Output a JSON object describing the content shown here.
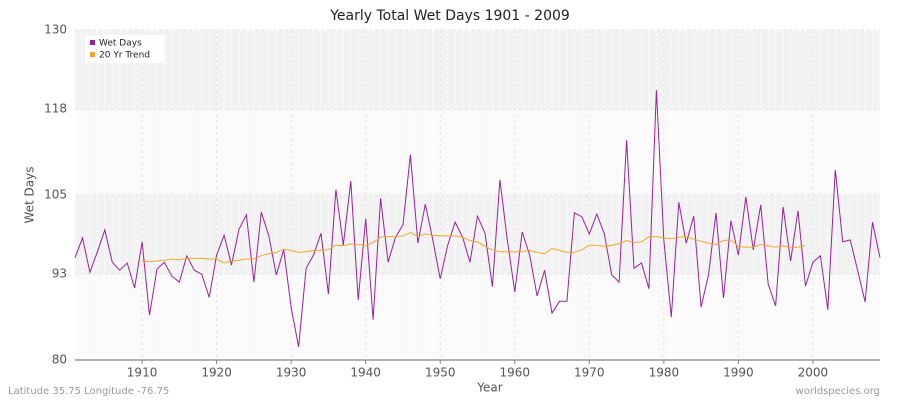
{
  "chart_data": {
    "type": "line",
    "title": "Yearly Total Wet Days 1901 - 2009",
    "x_label": "Year",
    "y_label": "Wet Days",
    "footer_left": "Latitude 35.75 Longitude -76.75",
    "footer_right": "worldspecies.org",
    "x": [
      1901,
      1902,
      1903,
      1904,
      1905,
      1906,
      1907,
      1908,
      1909,
      1910,
      1911,
      1912,
      1913,
      1914,
      1915,
      1916,
      1917,
      1918,
      1919,
      1920,
      1921,
      1922,
      1923,
      1924,
      1925,
      1926,
      1927,
      1928,
      1929,
      1930,
      1931,
      1932,
      1933,
      1934,
      1935,
      1936,
      1937,
      1938,
      1939,
      1940,
      1941,
      1942,
      1943,
      1944,
      1945,
      1946,
      1947,
      1948,
      1949,
      1950,
      1951,
      1952,
      1953,
      1954,
      1955,
      1956,
      1957,
      1958,
      1959,
      1960,
      1961,
      1962,
      1963,
      1964,
      1965,
      1966,
      1967,
      1968,
      1969,
      1970,
      1971,
      1972,
      1973,
      1974,
      1975,
      1976,
      1977,
      1978,
      1979,
      1980,
      1981,
      1982,
      1983,
      1984,
      1985,
      1986,
      1987,
      1988,
      1989,
      1990,
      1991,
      1992,
      1993,
      1994,
      1995,
      1996,
      1997,
      1998,
      1999,
      2000,
      2001,
      2002,
      2003,
      2004,
      2005,
      2006,
      2007,
      2008,
      2009
    ],
    "series": [
      {
        "name": "Wet Days",
        "color": "#9b1fa0",
        "values": [
          95.5,
          98.5,
          93.3,
          96.4,
          99.7,
          94.8,
          93.6,
          94.7,
          90.9,
          97.9,
          86.8,
          93.8,
          94.8,
          92.7,
          91.8,
          95.8,
          93.6,
          93.0,
          89.5,
          95.9,
          98.9,
          94.4,
          99.8,
          102.0,
          91.8,
          102.4,
          98.8,
          92.9,
          96.7,
          87.9,
          82.0,
          93.9,
          95.9,
          99.2,
          90.0,
          105.8,
          97.4,
          107.1,
          89.1,
          101.4,
          86.1,
          104.5,
          94.8,
          98.6,
          100.5,
          111.1,
          97.7,
          103.6,
          98.2,
          92.3,
          97.4,
          100.9,
          98.6,
          94.8,
          101.8,
          99.2,
          91.1,
          107.3,
          98.2,
          90.3,
          99.4,
          95.9,
          89.7,
          93.6,
          87.1,
          88.9,
          88.9,
          102.3,
          101.7,
          99.1,
          102.1,
          99.2,
          92.9,
          91.8,
          113.3,
          93.9,
          94.7,
          90.8,
          120.9,
          98.2,
          86.5,
          103.9,
          97.7,
          101.8,
          88.0,
          93.0,
          102.3,
          89.4,
          101.1,
          95.9,
          104.7,
          96.7,
          103.5,
          91.5,
          88.2,
          103.2,
          95.0,
          102.6,
          91.2,
          94.8,
          95.8,
          87.6,
          108.8,
          97.9,
          98.2,
          93.6,
          88.8,
          100.9,
          95.5
        ]
      },
      {
        "name": "20 Yr Trend",
        "color": "#f5a623",
        "values": [
          null,
          null,
          null,
          null,
          null,
          null,
          null,
          null,
          null,
          95.0,
          94.9,
          95.0,
          95.1,
          95.3,
          95.2,
          95.4,
          95.4,
          95.4,
          95.3,
          95.3,
          94.7,
          95.0,
          95.1,
          95.3,
          95.3,
          95.8,
          96.1,
          96.3,
          96.8,
          96.6,
          96.3,
          96.4,
          96.6,
          96.6,
          96.7,
          97.4,
          97.3,
          97.6,
          97.5,
          97.4,
          97.8,
          98.6,
          98.7,
          98.7,
          98.8,
          99.3,
          98.7,
          99.1,
          98.9,
          98.8,
          98.8,
          98.8,
          98.6,
          98.1,
          97.9,
          97.2,
          96.7,
          96.4,
          96.4,
          96.4,
          96.4,
          96.6,
          96.3,
          96.1,
          96.9,
          96.6,
          96.3,
          96.3,
          96.7,
          97.4,
          97.4,
          97.2,
          97.4,
          97.6,
          98.1,
          97.8,
          97.9,
          98.7,
          98.7,
          98.5,
          98.4,
          98.6,
          98.7,
          98.3,
          98.0,
          97.7,
          97.5,
          98.1,
          98.2,
          97.2,
          97.1,
          97.1,
          97.5,
          97.3,
          97.1,
          97.3,
          97.0,
          97.1,
          97.3,
          null,
          null,
          null,
          null,
          null,
          null,
          null,
          null,
          null,
          null
        ]
      }
    ],
    "xlim": [
      1901,
      2009
    ],
    "xticks": [
      1910,
      1920,
      1930,
      1940,
      1950,
      1960,
      1970,
      1980,
      1990,
      2000
    ],
    "ylim": [
      80,
      130
    ],
    "yticks": [
      80,
      93,
      105,
      118,
      130
    ],
    "grid": true,
    "legend": "top-left"
  }
}
